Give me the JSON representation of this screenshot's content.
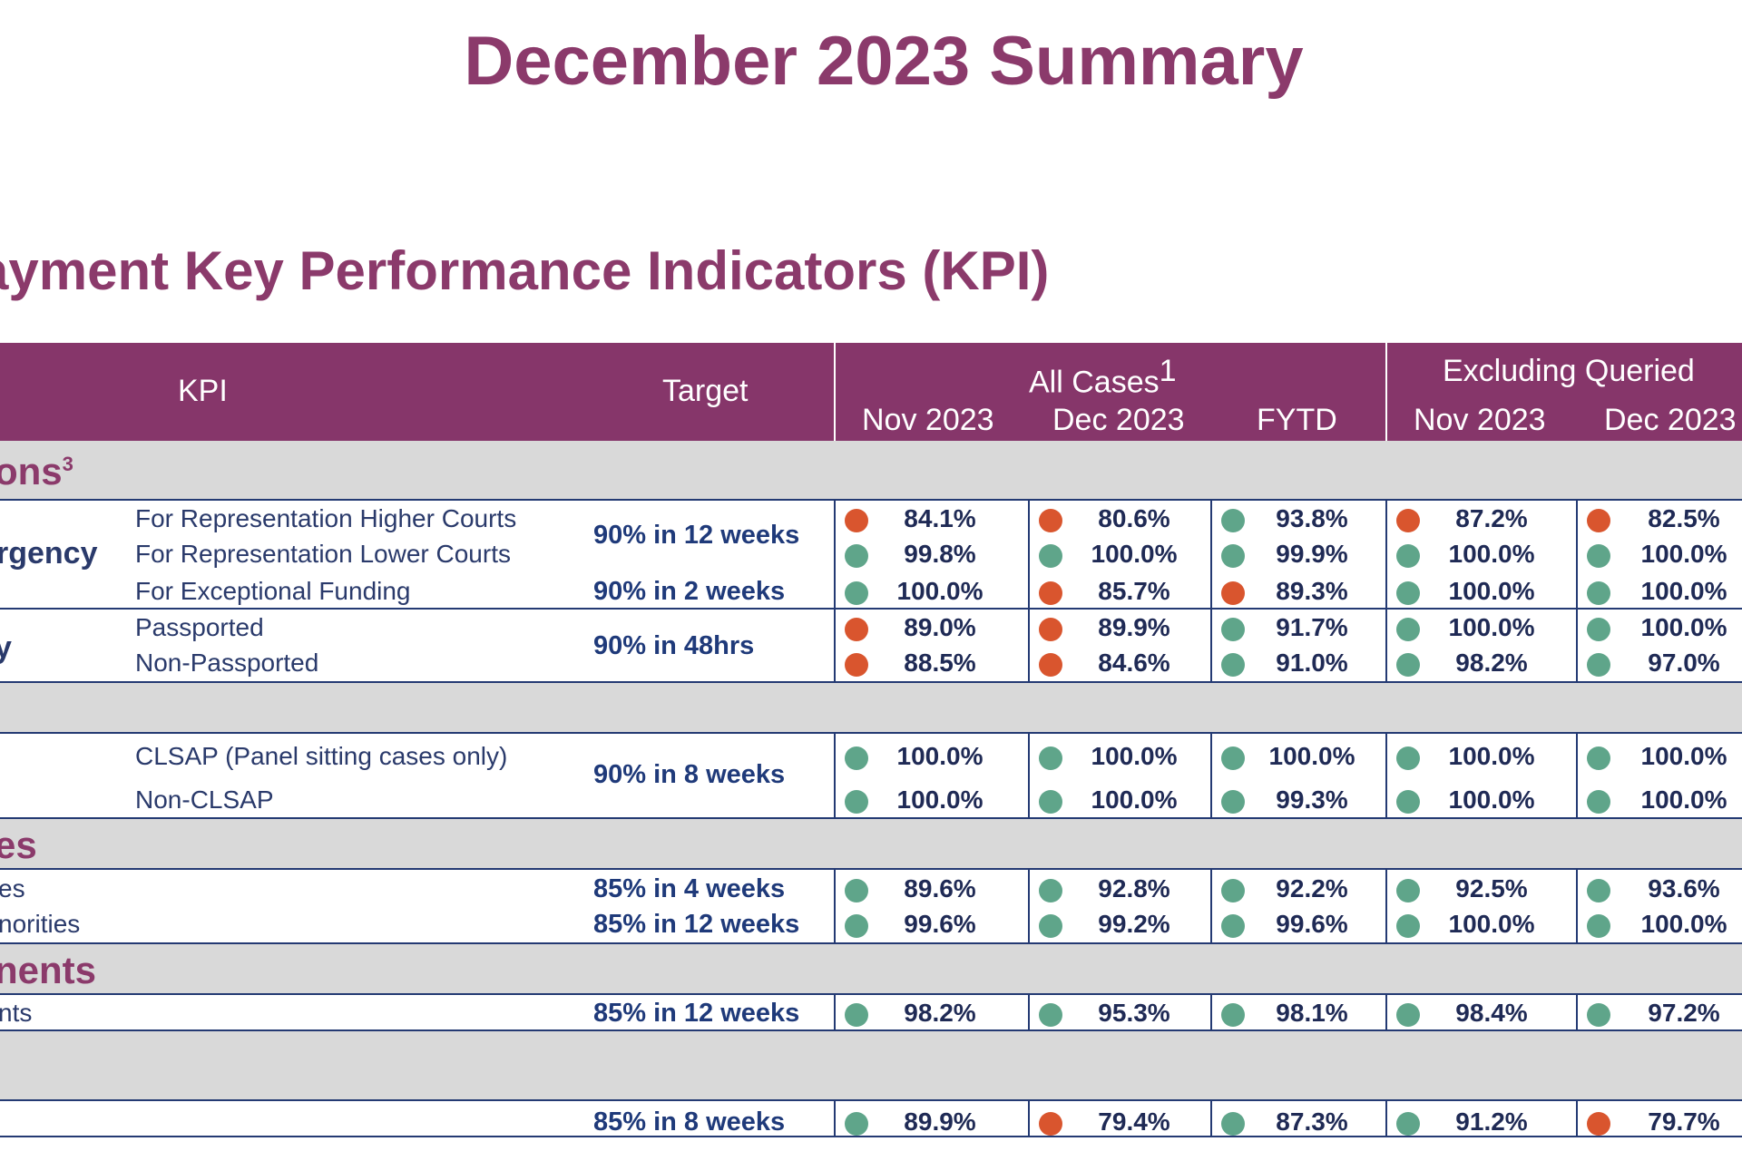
{
  "title": "December 2023 Summary",
  "subtitle": "ayment Key Performance Indicators (KPI)",
  "colors": {
    "green": "#5fa58a",
    "red": "#d9552e",
    "header": "#86366a",
    "title": "#8b3a6b"
  },
  "header": {
    "kpi": "KPI",
    "target": "Target",
    "all_cases": "All Cases",
    "all_cases_sup": "1",
    "excluding": "Excluding Queried",
    "cols": [
      "Nov 2023",
      "Dec 2023",
      "FYTD",
      "Nov 2023",
      "Dec 2023"
    ]
  },
  "sections": {
    "s1": {
      "label": "ons",
      "sup": "3"
    },
    "s4": {
      "label": "es"
    },
    "s5": {
      "label": "nents"
    }
  },
  "row_labels": {
    "urgency": "rgency",
    "y": "y"
  },
  "rows": [
    {
      "sub": "For Representation Higher Courts",
      "cells": [
        [
          "red",
          "84.1%"
        ],
        [
          "red",
          "80.6%"
        ],
        [
          "green",
          "93.8%"
        ],
        [
          "red",
          "87.2%"
        ],
        [
          "red",
          "82.5%"
        ]
      ]
    },
    {
      "sub": "For Representation Lower Courts",
      "cells": [
        [
          "green",
          "99.8%"
        ],
        [
          "green",
          "100.0%"
        ],
        [
          "green",
          "99.9%"
        ],
        [
          "green",
          "100.0%"
        ],
        [
          "green",
          "100.0%"
        ]
      ]
    },
    {
      "sub": "For Exceptional Funding",
      "cells": [
        [
          "green",
          "100.0%"
        ],
        [
          "red",
          "85.7%"
        ],
        [
          "red",
          "89.3%"
        ],
        [
          "green",
          "100.0%"
        ],
        [
          "green",
          "100.0%"
        ]
      ]
    },
    {
      "sub": "Passported",
      "cells": [
        [
          "red",
          "89.0%"
        ],
        [
          "red",
          "89.9%"
        ],
        [
          "green",
          "91.7%"
        ],
        [
          "green",
          "100.0%"
        ],
        [
          "green",
          "100.0%"
        ]
      ]
    },
    {
      "sub": "Non-Passported",
      "cells": [
        [
          "red",
          "88.5%"
        ],
        [
          "red",
          "84.6%"
        ],
        [
          "green",
          "91.0%"
        ],
        [
          "green",
          "98.2%"
        ],
        [
          "green",
          "97.0%"
        ]
      ]
    },
    {
      "sub": "CLSAP (Panel sitting cases only)",
      "cells": [
        [
          "green",
          "100.0%"
        ],
        [
          "green",
          "100.0%"
        ],
        [
          "green",
          "100.0%"
        ],
        [
          "green",
          "100.0%"
        ],
        [
          "green",
          "100.0%"
        ]
      ]
    },
    {
      "sub": "Non-CLSAP",
      "cells": [
        [
          "green",
          "100.0%"
        ],
        [
          "green",
          "100.0%"
        ],
        [
          "green",
          "99.3%"
        ],
        [
          "green",
          "100.0%"
        ],
        [
          "green",
          "100.0%"
        ]
      ]
    },
    {
      "sub": "es",
      "cells": [
        [
          "green",
          "89.6%"
        ],
        [
          "green",
          "92.8%"
        ],
        [
          "green",
          "92.2%"
        ],
        [
          "green",
          "92.5%"
        ],
        [
          "green",
          "93.6%"
        ]
      ]
    },
    {
      "sub": "norities",
      "cells": [
        [
          "green",
          "99.6%"
        ],
        [
          "green",
          "99.2%"
        ],
        [
          "green",
          "99.6%"
        ],
        [
          "green",
          "100.0%"
        ],
        [
          "green",
          "100.0%"
        ]
      ]
    },
    {
      "sub": "nts",
      "cells": [
        [
          "green",
          "98.2%"
        ],
        [
          "green",
          "95.3%"
        ],
        [
          "green",
          "98.1%"
        ],
        [
          "green",
          "98.4%"
        ],
        [
          "green",
          "97.2%"
        ]
      ]
    },
    {
      "sub": "",
      "cells": [
        [
          "green",
          "89.9%"
        ],
        [
          "red",
          "79.4%"
        ],
        [
          "green",
          "87.3%"
        ],
        [
          "green",
          "91.2%"
        ],
        [
          "red",
          "79.7%"
        ]
      ]
    }
  ],
  "targets": {
    "t1": "90% in 12 weeks",
    "t2": "90% in 2 weeks",
    "t3": "90% in 48hrs",
    "t4": "90% in 8 weeks",
    "t5": "85% in 4 weeks",
    "t6": "85% in 12 weeks",
    "t7": "85% in 12 weeks",
    "t8": "85% in 8 weeks"
  }
}
